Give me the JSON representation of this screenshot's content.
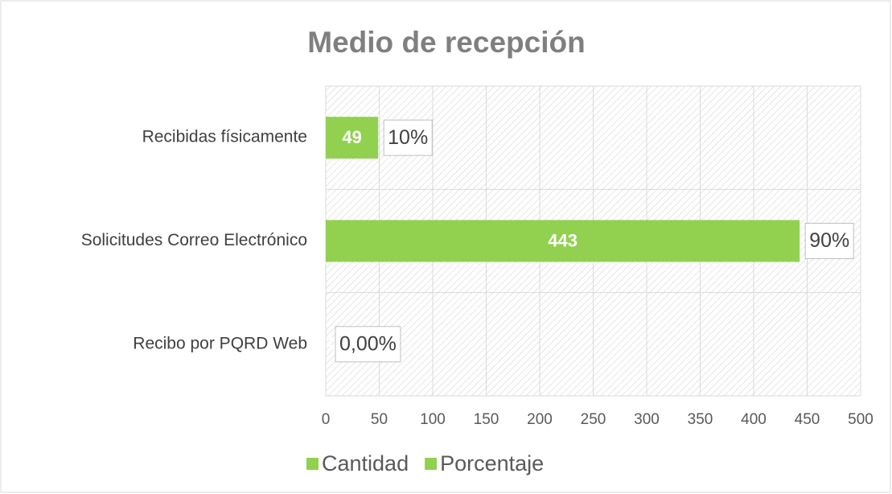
{
  "chart_data": {
    "type": "bar",
    "orientation": "horizontal",
    "title": "Medio de recepción",
    "categories": [
      "Recibidas físicamente",
      "Solicitudes Correo Electrónico",
      "Recibo por PQRD Web"
    ],
    "series": [
      {
        "name": "Cantidad",
        "color": "#92d050",
        "values": [
          49,
          443,
          0
        ]
      },
      {
        "name": "Porcentaje",
        "color": "#92d050",
        "values": [
          0.1,
          0.9,
          0
        ],
        "value_labels": [
          "10%",
          "90%",
          "0,00%"
        ]
      }
    ],
    "xlim": [
      0,
      500
    ],
    "xticks": [
      0,
      50,
      100,
      150,
      200,
      250,
      300,
      350,
      400,
      450,
      500
    ],
    "grid": true,
    "legend": "bottom"
  }
}
